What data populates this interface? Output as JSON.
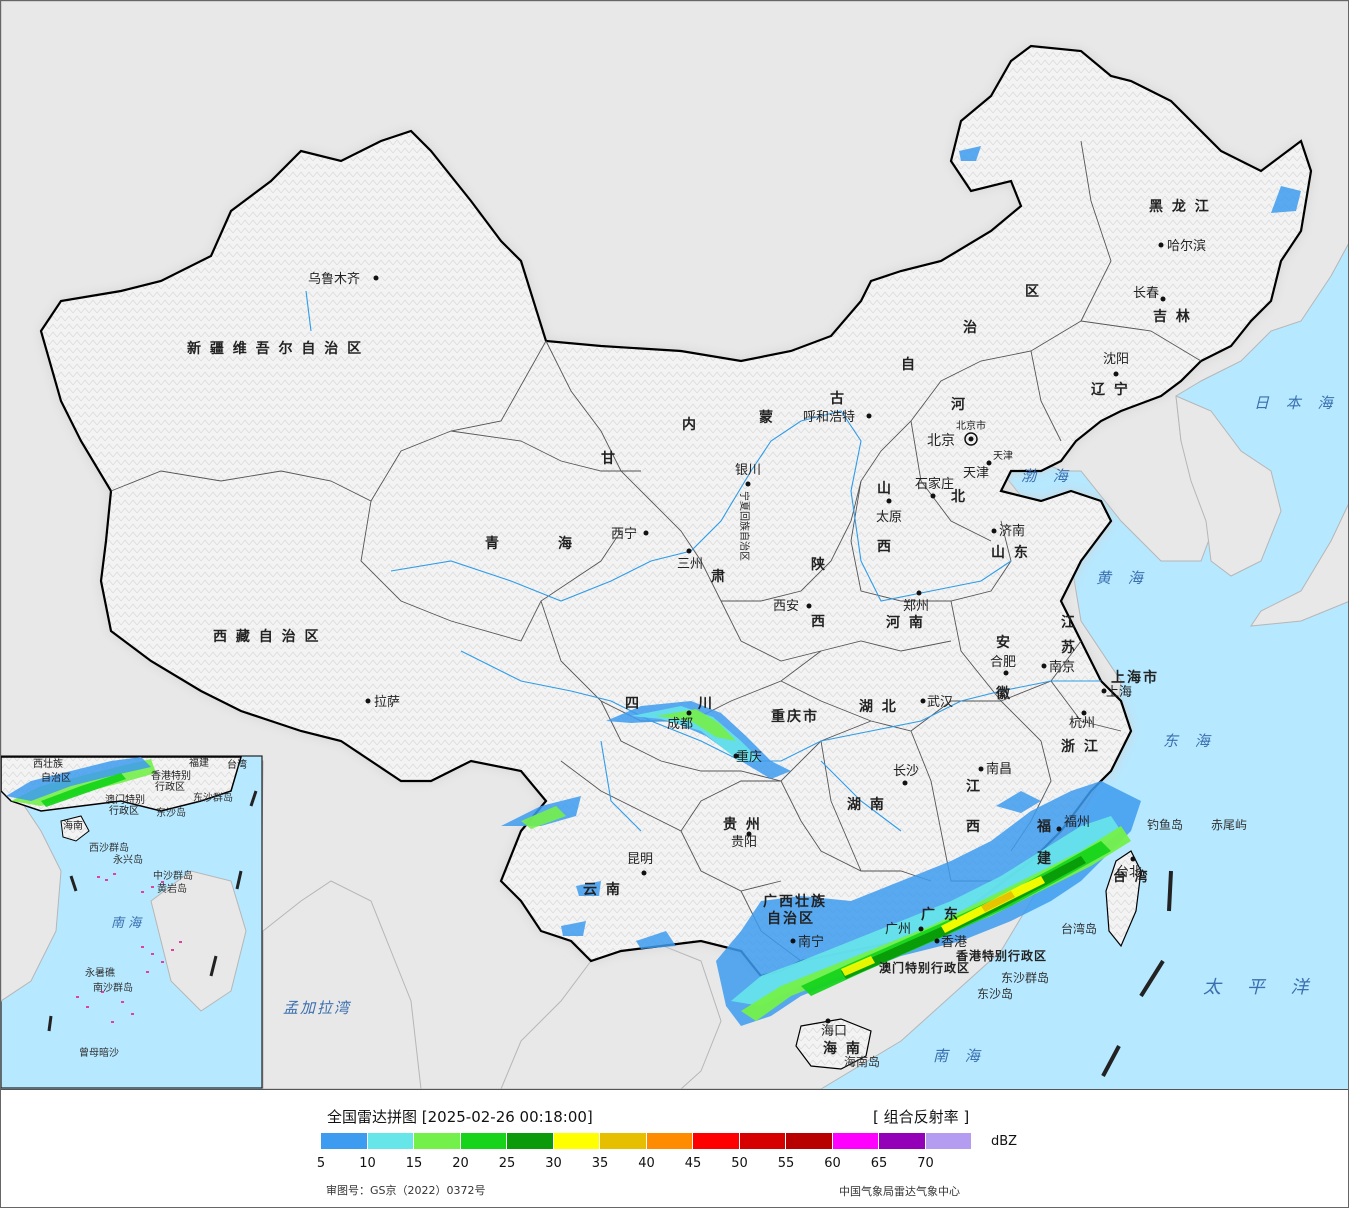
{
  "map": {
    "provinces": [
      {
        "key": "xinjiang",
        "label": "新 疆 维 吾 尔 自 治 区"
      },
      {
        "key": "xizang",
        "label": "西 藏 自 治 区"
      },
      {
        "key": "qinghai1",
        "label": "青"
      },
      {
        "key": "qinghai2",
        "label": "海"
      },
      {
        "key": "gansu1",
        "label": "甘"
      },
      {
        "key": "gansu2",
        "label": "肃"
      },
      {
        "key": "neimenggu1",
        "label": "内"
      },
      {
        "key": "neimenggu2",
        "label": "蒙"
      },
      {
        "key": "neimenggu3",
        "label": "古"
      },
      {
        "key": "neimenggu4",
        "label": "自"
      },
      {
        "key": "neimenggu5",
        "label": "治"
      },
      {
        "key": "neimenggu6",
        "label": "区"
      },
      {
        "key": "heilongjiang",
        "label": "黑 龙 江"
      },
      {
        "key": "jilin",
        "label": "吉 林"
      },
      {
        "key": "liaoning",
        "label": "辽 宁"
      },
      {
        "key": "hebei1",
        "label": "河"
      },
      {
        "key": "hebei2",
        "label": "北"
      },
      {
        "key": "shanxi1",
        "label": "山"
      },
      {
        "key": "shanxi2",
        "label": "西"
      },
      {
        "key": "shaanxi1",
        "label": "陕"
      },
      {
        "key": "shaanxi2",
        "label": "西"
      },
      {
        "key": "shandong",
        "label": "山 东"
      },
      {
        "key": "henan",
        "label": "河 南"
      },
      {
        "key": "jiangsu1",
        "label": "江"
      },
      {
        "key": "jiangsu2",
        "label": "苏"
      },
      {
        "key": "anhui1",
        "label": "安"
      },
      {
        "key": "anhui2",
        "label": "徽"
      },
      {
        "key": "hubei",
        "label": "湖 北"
      },
      {
        "key": "sichuan1",
        "label": "四"
      },
      {
        "key": "sichuan2",
        "label": "川"
      },
      {
        "key": "chongqing",
        "label": "重庆市"
      },
      {
        "key": "hunan",
        "label": "湖 南"
      },
      {
        "key": "jiangxi1",
        "label": "江"
      },
      {
        "key": "jiangxi2",
        "label": "西"
      },
      {
        "key": "zhejiang",
        "label": "浙 江"
      },
      {
        "key": "fujian1",
        "label": "福"
      },
      {
        "key": "fujian2",
        "label": "建"
      },
      {
        "key": "guizhou",
        "label": "贵 州"
      },
      {
        "key": "yunnan",
        "label": "云 南"
      },
      {
        "key": "guangxi1",
        "label": "广西壮族"
      },
      {
        "key": "guangxi2",
        "label": "自治区"
      },
      {
        "key": "guangdong",
        "label": "广 东"
      },
      {
        "key": "hainan",
        "label": "海 南"
      },
      {
        "key": "taiwan",
        "label": "台 湾"
      },
      {
        "key": "shanghai",
        "label": "上海市"
      },
      {
        "key": "beijing",
        "label": "北京市"
      },
      {
        "key": "tianjin",
        "label": "天津"
      },
      {
        "key": "xianggang",
        "label": "香港特别行政区"
      },
      {
        "key": "aomen",
        "label": "澳门特别行政区"
      },
      {
        "key": "ningxia",
        "label": "宁夏回族自治区"
      }
    ],
    "cities": [
      {
        "key": "urumqi",
        "label": "乌鲁木齐"
      },
      {
        "key": "lhasa",
        "label": "拉萨"
      },
      {
        "key": "xining",
        "label": "西宁"
      },
      {
        "key": "lanzhou",
        "label": "三州"
      },
      {
        "key": "yinchuan",
        "label": "银川"
      },
      {
        "key": "hohhot",
        "label": "呼和浩特"
      },
      {
        "key": "harbin",
        "label": "哈尔滨"
      },
      {
        "key": "changchun",
        "label": "长春"
      },
      {
        "key": "shenyang",
        "label": "沈阳"
      },
      {
        "key": "beijing",
        "label": "北京"
      },
      {
        "key": "tianjin",
        "label": "天津"
      },
      {
        "key": "shijiazhuang",
        "label": "石家庄"
      },
      {
        "key": "taiyuan",
        "label": "太原"
      },
      {
        "key": "jinan",
        "label": "济南"
      },
      {
        "key": "zhengzhou",
        "label": "郑州"
      },
      {
        "key": "xian",
        "label": "西安"
      },
      {
        "key": "hefei",
        "label": "合肥"
      },
      {
        "key": "nanjing",
        "label": "南京"
      },
      {
        "key": "shanghai",
        "label": "上海"
      },
      {
        "key": "hangzhou",
        "label": "杭州"
      },
      {
        "key": "wuhan",
        "label": "武汉"
      },
      {
        "key": "chengdu",
        "label": "成都"
      },
      {
        "key": "chongqing",
        "label": "重庆"
      },
      {
        "key": "changsha",
        "label": "长沙"
      },
      {
        "key": "nanchang",
        "label": "南昌"
      },
      {
        "key": "fuzhou",
        "label": "福州"
      },
      {
        "key": "guiyang",
        "label": "贵阳"
      },
      {
        "key": "kunming",
        "label": "昆明"
      },
      {
        "key": "nanning",
        "label": "南宁"
      },
      {
        "key": "guangzhou",
        "label": "广州"
      },
      {
        "key": "xianggang",
        "label": "香港"
      },
      {
        "key": "haikou",
        "label": "海口"
      },
      {
        "key": "taibei",
        "label": "台北"
      }
    ],
    "seas": [
      {
        "key": "riben",
        "label": "日 本 海"
      },
      {
        "key": "bohai",
        "label": "渤 海"
      },
      {
        "key": "huanghai",
        "label": "黄 海"
      },
      {
        "key": "donghai",
        "label": "东 海"
      },
      {
        "key": "taipingyang",
        "label": "太 平 洋"
      },
      {
        "key": "nanhai",
        "label": "南 海"
      },
      {
        "key": "mengjiala",
        "label": "孟加拉湾"
      }
    ],
    "islands": [
      {
        "key": "diaoyu",
        "label": "钓鱼岛"
      },
      {
        "key": "chiwei",
        "label": "赤尾屿"
      },
      {
        "key": "taiwandao",
        "label": "台湾岛"
      },
      {
        "key": "dongsha1",
        "label": "东沙群岛"
      },
      {
        "key": "dongsha2",
        "label": "东沙岛"
      },
      {
        "key": "hainandao",
        "label": "海南岛"
      }
    ],
    "inset": {
      "labels": [
        {
          "key": "guangxi",
          "label": "西壮族"
        },
        {
          "key": "zizhiqu",
          "label": "自治区"
        },
        {
          "key": "fujian",
          "label": "福建"
        },
        {
          "key": "taiwan",
          "label": "台湾"
        },
        {
          "key": "xianggang",
          "label": "香港特别"
        },
        {
          "key": "xingzhengqu",
          "label": "行政区"
        },
        {
          "key": "aomen",
          "label": "澳门特别"
        },
        {
          "key": "xingzhengqu2",
          "label": "行政区"
        },
        {
          "key": "dongsha",
          "label": "东沙群岛"
        },
        {
          "key": "dongshadao",
          "label": "东沙岛"
        },
        {
          "key": "hainan",
          "label": "海南"
        },
        {
          "key": "xisha",
          "label": "西沙群岛"
        },
        {
          "key": "yongxing",
          "label": "永兴岛"
        },
        {
          "key": "zhongsha",
          "label": "中沙群岛"
        },
        {
          "key": "huangyan",
          "label": "黄岩岛"
        },
        {
          "key": "nanhai",
          "label": "南 海"
        },
        {
          "key": "yongshu",
          "label": "永暑礁"
        },
        {
          "key": "nansha",
          "label": "南沙群岛"
        },
        {
          "key": "zengmu",
          "label": "曾母暗沙"
        }
      ]
    }
  },
  "legend": {
    "title": "全国雷达拼图 [2025-02-26 00:18:00]",
    "product": "[ 组合反射率 ]",
    "unit": "dBZ",
    "ticks": [
      "5",
      "10",
      "15",
      "20",
      "25",
      "30",
      "35",
      "40",
      "45",
      "50",
      "55",
      "60",
      "65",
      "70"
    ],
    "colors": [
      "#3d9bf0",
      "#67e6ea",
      "#74f04a",
      "#17d41b",
      "#0a9a0a",
      "#ffff00",
      "#e6c000",
      "#ff8c00",
      "#ff0000",
      "#d60000",
      "#b80000",
      "#ff00ff",
      "#9400b8",
      "#b49cf0"
    ],
    "approval": "审图号：GS京（2022）0372号",
    "source": "中国气象局雷达气象中心"
  }
}
